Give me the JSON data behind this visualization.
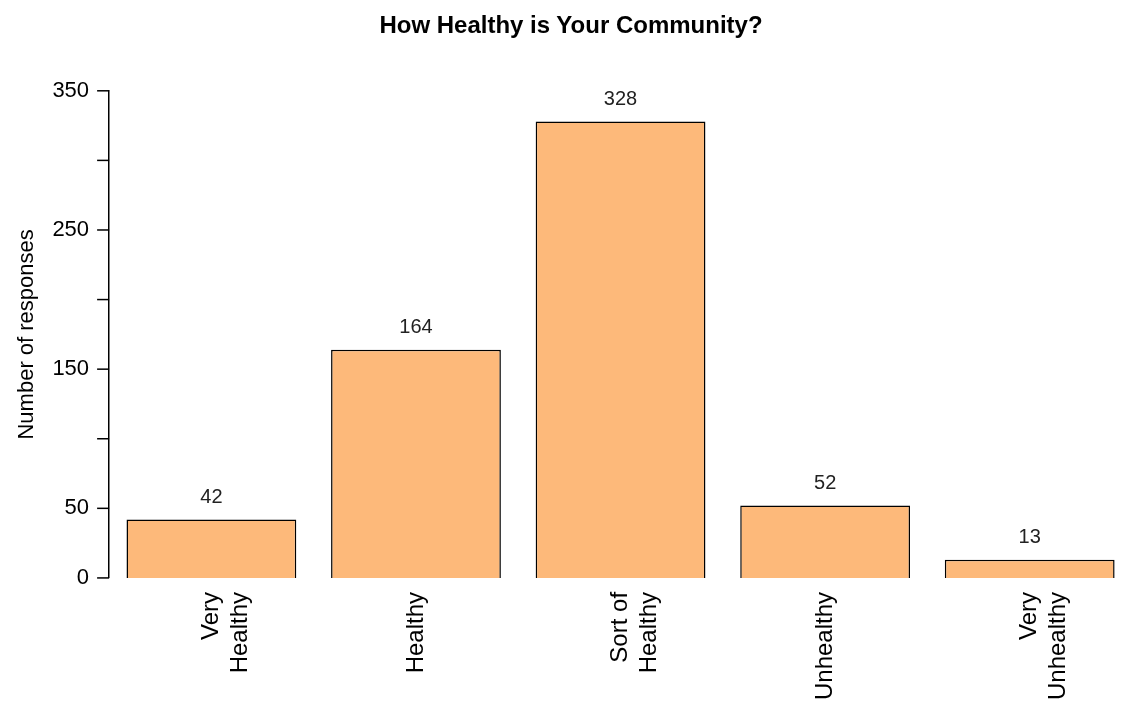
{
  "chart_data": {
    "type": "bar",
    "title": "How Healthy is Your Community?",
    "ylabel": "Number of responses",
    "categories": [
      "Very\nHealthy",
      "Healthy",
      "Sort of\nHealthy",
      "Unhealthy",
      "Very\nUnhealthy"
    ],
    "values": [
      42,
      164,
      328,
      52,
      13
    ],
    "color": "#fdb97a",
    "ylim": [
      0,
      350
    ],
    "yticks": [
      0,
      50,
      {
        "value": 100,
        "label": null
      },
      150,
      {
        "value": 200,
        "label": null
      },
      250,
      {
        "value": 300,
        "label": null
      },
      350
    ],
    "grid": false,
    "legend": false,
    "data_labels": true
  }
}
